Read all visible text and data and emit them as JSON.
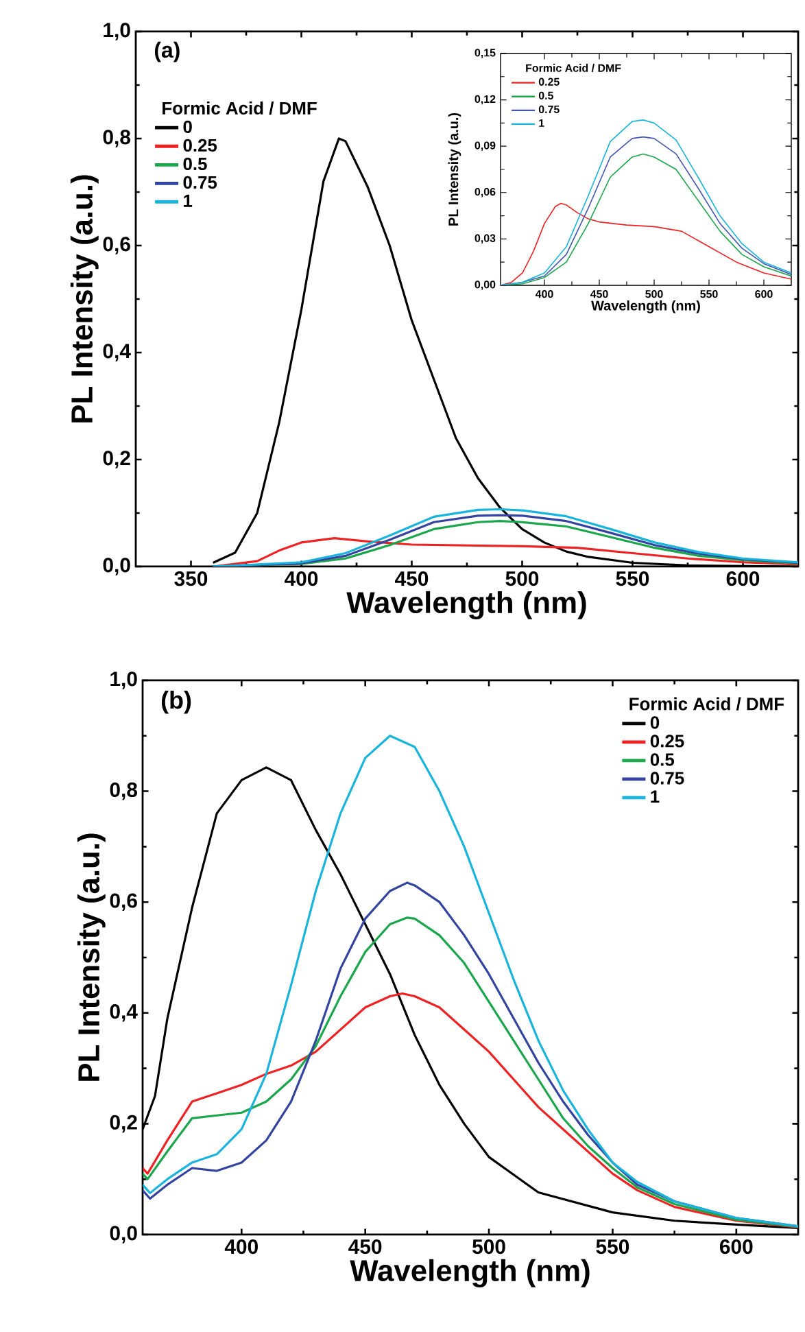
{
  "chart_data": [
    {
      "type": "line",
      "xlabel": "Wavelength (nm)",
      "ylabel": "PL Intensity (a.u.)",
      "legend_title": "Formic Acid / DMF",
      "legend": "top left",
      "annotations": [
        "(a)"
      ],
      "xlim": [
        325,
        625
      ],
      "xticks": [
        350,
        400,
        450,
        500,
        550,
        600
      ],
      "ylim": [
        0,
        1.0
      ],
      "yticks": [
        {
          "value": 0,
          "label": "0,0"
        },
        {
          "value": 0.2,
          "label": "0,2"
        },
        {
          "value": 0.4,
          "label": "0,4"
        },
        {
          "value": 0.6,
          "label": "0,6"
        },
        {
          "value": 0.8,
          "label": "0,8"
        },
        {
          "value": 1.0,
          "label": "1,0"
        }
      ],
      "series": [
        {
          "name": "0",
          "color": "#000000",
          "x": [
            360,
            370,
            380,
            390,
            400,
            410,
            417,
            420,
            430,
            440,
            450,
            460,
            470,
            480,
            490,
            500,
            510,
            520,
            530,
            550,
            575,
            600,
            625
          ],
          "values": [
            0.007,
            0.026,
            0.1,
            0.27,
            0.48,
            0.72,
            0.8,
            0.795,
            0.71,
            0.6,
            0.46,
            0.35,
            0.24,
            0.165,
            0.11,
            0.07,
            0.045,
            0.028,
            0.018,
            0.007,
            0.002,
            0.001,
            0
          ]
        },
        {
          "name": "0.25",
          "color": "#ee2222",
          "x": [
            360,
            380,
            390,
            400,
            415,
            430,
            450,
            500,
            525,
            550,
            575,
            600,
            625
          ],
          "values": [
            0,
            0.01,
            0.03,
            0.045,
            0.053,
            0.047,
            0.041,
            0.038,
            0.035,
            0.025,
            0.015,
            0.008,
            0.004
          ]
        },
        {
          "name": "0.5",
          "color": "#1aa64a",
          "x": [
            360,
            400,
            420,
            440,
            460,
            480,
            490,
            500,
            520,
            540,
            560,
            580,
            600,
            625
          ],
          "values": [
            0,
            0.005,
            0.015,
            0.04,
            0.07,
            0.083,
            0.085,
            0.083,
            0.075,
            0.055,
            0.035,
            0.02,
            0.012,
            0.006
          ]
        },
        {
          "name": "0.75",
          "color": "#3344a0",
          "x": [
            360,
            400,
            420,
            440,
            460,
            480,
            490,
            500,
            520,
            540,
            560,
            580,
            600,
            625
          ],
          "values": [
            0,
            0.006,
            0.02,
            0.05,
            0.083,
            0.095,
            0.096,
            0.095,
            0.085,
            0.063,
            0.04,
            0.024,
            0.014,
            0.007
          ]
        },
        {
          "name": "1",
          "color": "#19b4dc",
          "x": [
            360,
            400,
            420,
            440,
            460,
            480,
            490,
            500,
            520,
            540,
            560,
            580,
            600,
            625
          ],
          "values": [
            0,
            0.008,
            0.025,
            0.058,
            0.093,
            0.106,
            0.107,
            0.105,
            0.094,
            0.07,
            0.045,
            0.027,
            0.015,
            0.008
          ]
        }
      ]
    },
    {
      "type": "line",
      "xlabel": "Wavelength (nm)",
      "ylabel": "PL Intensity (a.u.)",
      "legend_title": "Formic Acid / DMF",
      "legend": "top left",
      "xlim": [
        360,
        625
      ],
      "xticks": [
        400,
        450,
        500,
        550,
        600
      ],
      "ylim": [
        0,
        0.15
      ],
      "yticks": [
        {
          "value": 0,
          "label": "0,00"
        },
        {
          "value": 0.03,
          "label": "0,03"
        },
        {
          "value": 0.06,
          "label": "0,06"
        },
        {
          "value": 0.09,
          "label": "0,09"
        },
        {
          "value": 0.12,
          "label": "0,12"
        },
        {
          "value": 0.15,
          "label": "0,15"
        }
      ],
      "series": [
        {
          "name": "0.25",
          "color": "#ee2222",
          "x": [
            360,
            370,
            380,
            390,
            400,
            410,
            415,
            420,
            430,
            440,
            450,
            475,
            500,
            525,
            550,
            575,
            600,
            625
          ],
          "values": [
            0,
            0.002,
            0.008,
            0.022,
            0.04,
            0.051,
            0.053,
            0.052,
            0.047,
            0.043,
            0.041,
            0.039,
            0.038,
            0.035,
            0.025,
            0.015,
            0.008,
            0.004
          ]
        },
        {
          "name": "0.5",
          "color": "#1aa64a",
          "x": [
            360,
            380,
            400,
            420,
            440,
            460,
            480,
            490,
            500,
            520,
            540,
            560,
            580,
            600,
            625
          ],
          "values": [
            0,
            0.001,
            0.005,
            0.015,
            0.04,
            0.07,
            0.083,
            0.085,
            0.083,
            0.075,
            0.055,
            0.035,
            0.02,
            0.012,
            0.006
          ]
        },
        {
          "name": "0.75",
          "color": "#4455b0",
          "x": [
            360,
            380,
            400,
            420,
            440,
            460,
            480,
            490,
            500,
            520,
            540,
            560,
            580,
            600,
            625
          ],
          "values": [
            0,
            0.002,
            0.006,
            0.02,
            0.05,
            0.083,
            0.095,
            0.096,
            0.095,
            0.085,
            0.063,
            0.04,
            0.024,
            0.014,
            0.007
          ]
        },
        {
          "name": "1",
          "color": "#19b4dc",
          "x": [
            360,
            380,
            400,
            420,
            440,
            460,
            480,
            490,
            500,
            520,
            540,
            560,
            580,
            600,
            625
          ],
          "values": [
            0,
            0.002,
            0.008,
            0.025,
            0.058,
            0.093,
            0.106,
            0.107,
            0.105,
            0.094,
            0.07,
            0.045,
            0.027,
            0.015,
            0.008
          ]
        }
      ]
    },
    {
      "type": "line",
      "xlabel": "Wavelength (nm)",
      "ylabel": "PL Intensity (a.u.)",
      "legend_title": "Formic Acid / DMF",
      "legend": "top right",
      "annotations": [
        "(b)"
      ],
      "xlim": [
        360,
        625
      ],
      "xticks": [
        400,
        450,
        500,
        550,
        600
      ],
      "ylim": [
        0,
        1.0
      ],
      "yticks": [
        {
          "value": 0,
          "label": "0,0"
        },
        {
          "value": 0.2,
          "label": "0,2"
        },
        {
          "value": 0.4,
          "label": "0,4"
        },
        {
          "value": 0.6,
          "label": "0,6"
        },
        {
          "value": 0.8,
          "label": "0,8"
        },
        {
          "value": 1.0,
          "label": "1,0"
        }
      ],
      "series": [
        {
          "name": "0",
          "color": "#000000",
          "x": [
            360,
            365,
            370,
            380,
            390,
            400,
            410,
            420,
            430,
            440,
            450,
            460,
            470,
            480,
            490,
            500,
            520,
            550,
            575,
            600,
            625
          ],
          "values": [
            0.19,
            0.25,
            0.39,
            0.59,
            0.76,
            0.82,
            0.843,
            0.82,
            0.73,
            0.65,
            0.56,
            0.47,
            0.36,
            0.27,
            0.2,
            0.14,
            0.076,
            0.04,
            0.025,
            0.018,
            0.012
          ]
        },
        {
          "name": "0.25",
          "color": "#ee2222",
          "x": [
            360,
            362,
            370,
            380,
            390,
            400,
            410,
            420,
            430,
            440,
            450,
            460,
            465,
            470,
            480,
            490,
            500,
            510,
            520,
            530,
            540,
            550,
            560,
            575,
            600,
            625
          ],
          "values": [
            0.12,
            0.11,
            0.17,
            0.24,
            0.255,
            0.27,
            0.29,
            0.305,
            0.33,
            0.37,
            0.41,
            0.43,
            0.435,
            0.43,
            0.41,
            0.37,
            0.33,
            0.28,
            0.23,
            0.19,
            0.15,
            0.11,
            0.08,
            0.05,
            0.025,
            0.013
          ]
        },
        {
          "name": "0.5",
          "color": "#1aa64a",
          "x": [
            360,
            362,
            370,
            380,
            390,
            400,
            410,
            420,
            430,
            440,
            450,
            460,
            467,
            470,
            480,
            490,
            500,
            510,
            520,
            530,
            540,
            550,
            560,
            575,
            600,
            625
          ],
          "values": [
            0.11,
            0.1,
            0.15,
            0.21,
            0.215,
            0.22,
            0.24,
            0.28,
            0.34,
            0.43,
            0.51,
            0.56,
            0.572,
            0.57,
            0.54,
            0.49,
            0.42,
            0.35,
            0.28,
            0.21,
            0.16,
            0.12,
            0.085,
            0.055,
            0.027,
            0.014
          ]
        },
        {
          "name": "0.75",
          "color": "#3344a0",
          "x": [
            360,
            363,
            370,
            380,
            390,
            400,
            410,
            420,
            430,
            440,
            450,
            460,
            467,
            470,
            480,
            490,
            500,
            510,
            520,
            530,
            540,
            550,
            560,
            575,
            600,
            625
          ],
          "values": [
            0.08,
            0.065,
            0.09,
            0.12,
            0.115,
            0.13,
            0.17,
            0.24,
            0.35,
            0.48,
            0.57,
            0.62,
            0.635,
            0.63,
            0.6,
            0.54,
            0.47,
            0.39,
            0.31,
            0.24,
            0.18,
            0.13,
            0.09,
            0.06,
            0.03,
            0.015
          ]
        },
        {
          "name": "1",
          "color": "#19b4dc",
          "x": [
            360,
            363,
            370,
            380,
            390,
            400,
            410,
            420,
            430,
            440,
            450,
            460,
            470,
            480,
            490,
            500,
            510,
            520,
            530,
            540,
            550,
            560,
            575,
            600,
            625
          ],
          "values": [
            0.09,
            0.075,
            0.1,
            0.13,
            0.145,
            0.19,
            0.29,
            0.45,
            0.62,
            0.76,
            0.86,
            0.9,
            0.88,
            0.8,
            0.7,
            0.58,
            0.46,
            0.35,
            0.26,
            0.19,
            0.13,
            0.095,
            0.06,
            0.03,
            0.015
          ]
        }
      ]
    }
  ]
}
